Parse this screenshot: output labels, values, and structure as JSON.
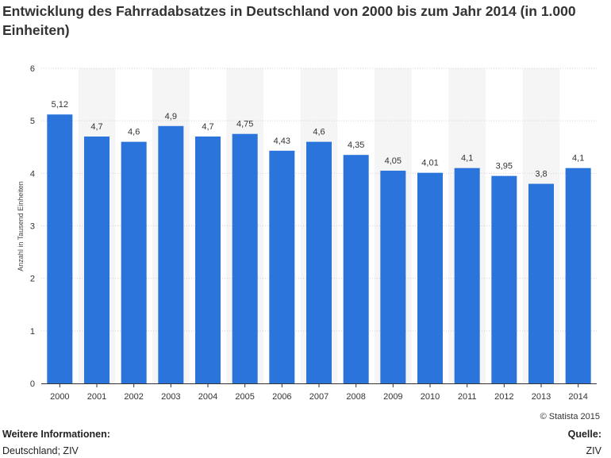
{
  "title": "Entwicklung des Fahrradabsatzes in Deutschland von 2000 bis zum Jahr 2014 (in 1.000 Einheiten)",
  "copyright": "© Statista 2015",
  "footer": {
    "info_label": "Weitere Informationen:",
    "info_value": "Deutschland; ZIV",
    "source_label": "Quelle:",
    "source_value": "ZIV"
  },
  "colors": {
    "bar": "#2a74dc",
    "band": "#f5f5f5",
    "grid": "#d4d4d4",
    "axis": "#333333"
  },
  "chart_data": {
    "type": "bar",
    "categories": [
      "2000",
      "2001",
      "2002",
      "2003",
      "2004",
      "2005",
      "2006",
      "2007",
      "2008",
      "2009",
      "2010",
      "2011",
      "2012",
      "2013",
      "2014"
    ],
    "values": [
      5.12,
      4.7,
      4.6,
      4.9,
      4.7,
      4.75,
      4.43,
      4.6,
      4.35,
      4.05,
      4.01,
      4.1,
      3.95,
      3.8,
      4.1
    ],
    "value_labels": [
      "5,12",
      "4,7",
      "4,6",
      "4,9",
      "4,7",
      "4,75",
      "4,43",
      "4,6",
      "4,35",
      "4,05",
      "4,01",
      "4,1",
      "3,95",
      "3,8",
      "4,1"
    ],
    "ylabel": "Anzahl in Tausend Einheiten",
    "xlabel": "",
    "ylim": [
      0,
      6
    ],
    "yticks": [
      0,
      1,
      2,
      3,
      4,
      5,
      6
    ],
    "grid": true,
    "legend": "none"
  }
}
